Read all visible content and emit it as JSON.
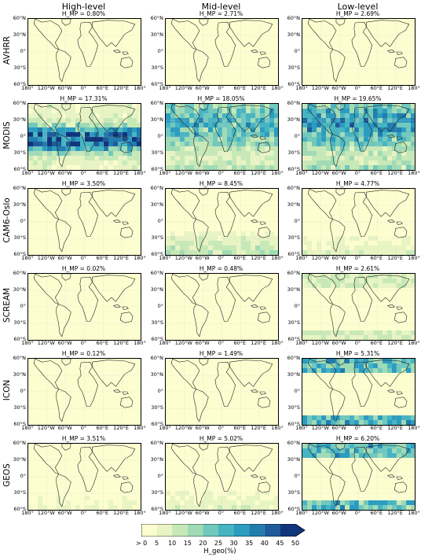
{
  "columns": [
    "High-level",
    "Mid-level",
    "Low-level"
  ],
  "rows": [
    {
      "name": "AVHRR",
      "h": [
        "H_MP = 0.80%",
        "H_MP = 2.71%",
        "H_MP = 2.69%"
      ],
      "intensity": [
        0.02,
        0.05,
        0.06
      ],
      "pattern": [
        "flat",
        "flat",
        "flat"
      ]
    },
    {
      "name": "MODIS",
      "h": [
        "H_MP = 17.31%",
        "H_MP = 18.05%",
        "H_MP = 19.65%"
      ],
      "intensity": [
        0.55,
        0.5,
        0.6
      ],
      "pattern": [
        "tropics",
        "broad",
        "broad"
      ]
    },
    {
      "name": "CAM6-Oslo",
      "h": [
        "H_MP = 3.50%",
        "H_MP = 8.45%",
        "H_MP = 4.77%"
      ],
      "intensity": [
        0.08,
        0.2,
        0.12
      ],
      "pattern": [
        "flat",
        "south",
        "south"
      ]
    },
    {
      "name": "SCREAM",
      "h": [
        "H_MP = 0.02%",
        "H_MP = 0.48%",
        "H_MP = 2.61%"
      ],
      "intensity": [
        0.0,
        0.02,
        0.12
      ],
      "pattern": [
        "flat",
        "flat",
        "polar"
      ]
    },
    {
      "name": "ICON",
      "h": [
        "H_MP = 0.12%",
        "H_MP = 1.49%",
        "H_MP = 5.31%"
      ],
      "intensity": [
        0.01,
        0.04,
        0.3
      ],
      "pattern": [
        "flat",
        "flat",
        "polar"
      ]
    },
    {
      "name": "GEOS",
      "h": [
        "H_MP = 3.51%",
        "H_MP = 5.02%",
        "H_MP = 6.20%"
      ],
      "intensity": [
        0.08,
        0.12,
        0.3
      ],
      "pattern": [
        "south",
        "south",
        "polar"
      ]
    }
  ],
  "y_ticks": [
    "60°N",
    "30°N",
    "0°",
    "30°S",
    "60°S"
  ],
  "x_ticks": [
    "180°",
    "120°W",
    "60°W",
    "0°",
    "60°E",
    "120°E",
    "180°"
  ],
  "colorbar": {
    "ticks": [
      "> 0",
      "5",
      "10",
      "15",
      "20",
      "25",
      "30",
      "35",
      "40",
      "45",
      "50"
    ],
    "colors": [
      "#fdfed0",
      "#e8f4c4",
      "#c7e9b7",
      "#a0dbb6",
      "#71c8bd",
      "#47b4c2",
      "#2c9cc0",
      "#217dae",
      "#1f5c9c",
      "#10357c"
    ],
    "label": "H_geo(%)"
  }
}
